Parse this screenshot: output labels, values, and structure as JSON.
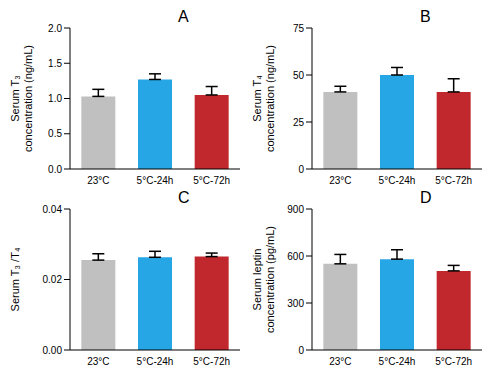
{
  "chart_data": [
    {
      "type": "bar",
      "title": "A",
      "y_label": [
        "Serum T₃",
        "concentration (ng/mL)"
      ],
      "categories": [
        "23°C",
        "5°C-24h",
        "5°C-72h"
      ],
      "values": [
        1.03,
        1.27,
        1.05
      ],
      "errors": [
        0.1,
        0.08,
        0.12
      ],
      "colors": [
        "#c0c0c0",
        "#27a6e5",
        "#c0282d"
      ],
      "ylim": [
        0,
        2
      ],
      "yticks": [
        {
          "value": 0,
          "label": "0.0"
        },
        {
          "value": 0.5,
          "label": "0.5"
        },
        {
          "value": 1,
          "label": "1.0"
        },
        {
          "value": 1.5,
          "label": "1.5"
        },
        {
          "value": 2,
          "label": "2.0"
        }
      ]
    },
    {
      "type": "bar",
      "title": "B",
      "y_label": [
        "Serum T₄",
        "concentration (ng/mL)"
      ],
      "categories": [
        "23°C",
        "5°C-24h",
        "5°C-72h"
      ],
      "values": [
        41,
        50,
        41
      ],
      "errors": [
        3,
        4,
        7
      ],
      "colors": [
        "#c0c0c0",
        "#27a6e5",
        "#c0282d"
      ],
      "ylim": [
        0,
        75
      ],
      "yticks": [
        0,
        25,
        50,
        75
      ]
    },
    {
      "type": "bar",
      "title": "C",
      "y_label": [
        "Serum T₃ /T₄"
      ],
      "categories": [
        "23°C",
        "5°C-24h",
        "5°C-72h"
      ],
      "values": [
        0.0255,
        0.0263,
        0.0265
      ],
      "errors": [
        0.0018,
        0.0017,
        0.001
      ],
      "colors": [
        "#c0c0c0",
        "#27a6e5",
        "#c0282d"
      ],
      "ylim": [
        0,
        0.04
      ],
      "yticks": [
        {
          "value": 0,
          "label": "0.00"
        },
        {
          "value": 0.02,
          "label": "0.02"
        },
        {
          "value": 0.04,
          "label": "0.04"
        }
      ]
    },
    {
      "type": "bar",
      "title": "D",
      "y_label": [
        "Serum leptin",
        "concentration (pg/mL)"
      ],
      "categories": [
        "23°C",
        "5°C-24h",
        "5°C-72h"
      ],
      "values": [
        550,
        580,
        505
      ],
      "errors": [
        60,
        60,
        35
      ],
      "colors": [
        "#c0c0c0",
        "#27a6e5",
        "#c0282d"
      ],
      "ylim": [
        0,
        900
      ],
      "yticks": [
        0,
        300,
        600,
        900
      ]
    }
  ]
}
